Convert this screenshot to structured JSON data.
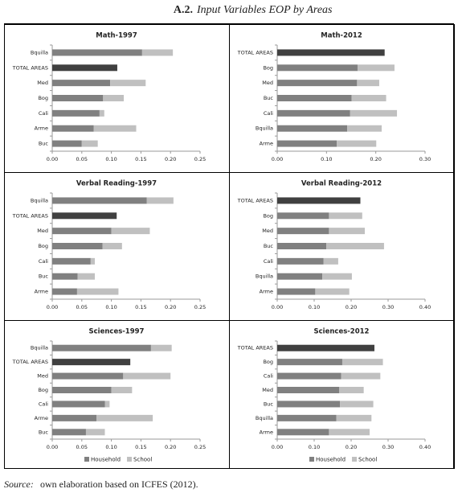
{
  "figure_label": "A.2.",
  "figure_title": "Input Variables EOP by Areas",
  "source_label": "Source:",
  "source_text": "own elaboration based on ICFES (2012).",
  "chart_data": [
    {
      "type": "stacked-barh",
      "title": "Math-1997",
      "categories": [
        "Bquilla",
        "TOTAL AREAS",
        "Med",
        "Bog",
        "Cali",
        "Arme",
        "Buc"
      ],
      "series": [
        {
          "name": "Household",
          "color": "#808080",
          "values": [
            0.152,
            0.11,
            0.098,
            0.086,
            0.08,
            0.07,
            0.05
          ]
        },
        {
          "name": "School",
          "color": "#c0c0c0",
          "values": [
            0.052,
            null,
            0.06,
            0.035,
            0.008,
            0.072,
            0.027
          ]
        }
      ],
      "highlight_category": "TOTAL AREAS",
      "highlight_color": "#404040",
      "xlim": [
        0,
        0.25
      ],
      "xticks": [
        {
          "value": 0,
          "label": "0.00"
        },
        {
          "value": 0.05,
          "label": "0.05"
        },
        {
          "value": 0.1,
          "label": "0.10"
        },
        {
          "value": 0.15,
          "label": "0.15"
        },
        {
          "value": 0.2,
          "label": "0.20"
        },
        {
          "value": 0.25,
          "label": "0.25"
        }
      ],
      "legend": false
    },
    {
      "type": "stacked-barh",
      "title": "Math-2012",
      "categories": [
        "TOTAL AREAS",
        "Bog",
        "Med",
        "Buc",
        "Cali",
        "Bquilla",
        "Arme"
      ],
      "series": [
        {
          "name": "Household",
          "color": "#808080",
          "values": [
            0.218,
            0.163,
            0.162,
            0.151,
            0.148,
            0.142,
            0.121
          ]
        },
        {
          "name": "School",
          "color": "#c0c0c0",
          "values": [
            null,
            0.075,
            0.045,
            0.07,
            0.095,
            0.07,
            0.08
          ]
        }
      ],
      "highlight_category": "TOTAL AREAS",
      "highlight_color": "#404040",
      "xlim": [
        0,
        0.3
      ],
      "xticks": [
        {
          "value": 0,
          "label": "0.00"
        },
        {
          "value": 0.1,
          "label": "0.10"
        },
        {
          "value": 0.2,
          "label": "0.20"
        },
        {
          "value": 0.3,
          "label": "0.30"
        }
      ],
      "legend": false
    },
    {
      "type": "stacked-barh",
      "title": "Verbal Reading-1997",
      "categories": [
        "Bquilla",
        "TOTAL AREAS",
        "Med",
        "Bog",
        "Cali",
        "Buc",
        "Arme"
      ],
      "series": [
        {
          "name": "Household",
          "color": "#808080",
          "values": [
            0.16,
            0.109,
            0.1,
            0.085,
            0.065,
            0.043,
            0.042
          ]
        },
        {
          "name": "School",
          "color": "#c0c0c0",
          "values": [
            0.045,
            null,
            0.065,
            0.033,
            0.007,
            0.029,
            0.07
          ]
        }
      ],
      "highlight_category": "TOTAL AREAS",
      "highlight_color": "#404040",
      "xlim": [
        0,
        0.25
      ],
      "xticks": [
        {
          "value": 0,
          "label": "0.00"
        },
        {
          "value": 0.05,
          "label": "0.05"
        },
        {
          "value": 0.1,
          "label": "0.10"
        },
        {
          "value": 0.15,
          "label": "0.15"
        },
        {
          "value": 0.2,
          "label": "0.20"
        },
        {
          "value": 0.25,
          "label": "0.25"
        }
      ],
      "legend": false
    },
    {
      "type": "stacked-barh",
      "title": "Verbal Reading-2012",
      "categories": [
        "TOTAL AREAS",
        "Bog",
        "Med",
        "Buc",
        "Cali",
        "Bquilla",
        "Arme"
      ],
      "series": [
        {
          "name": "Household",
          "color": "#808080",
          "values": [
            0.225,
            0.14,
            0.14,
            0.133,
            0.125,
            0.122,
            0.103
          ]
        },
        {
          "name": "School",
          "color": "#c0c0c0",
          "values": [
            null,
            0.09,
            0.097,
            0.156,
            0.04,
            0.08,
            0.092
          ]
        }
      ],
      "highlight_category": "TOTAL AREAS",
      "highlight_color": "#404040",
      "xlim": [
        0,
        0.4
      ],
      "xticks": [
        {
          "value": 0,
          "label": "0.00"
        },
        {
          "value": 0.1,
          "label": "0.10"
        },
        {
          "value": 0.2,
          "label": "0.20"
        },
        {
          "value": 0.3,
          "label": "0.30"
        },
        {
          "value": 0.4,
          "label": "0.40"
        }
      ],
      "legend": false
    },
    {
      "type": "stacked-barh",
      "title": "Sciences-1997",
      "categories": [
        "Bquilla",
        "TOTAL AREAS",
        "Med",
        "Bog",
        "Cali",
        "Arme",
        "Buc"
      ],
      "series": [
        {
          "name": "Household",
          "color": "#808080",
          "values": [
            0.167,
            0.132,
            0.12,
            0.1,
            0.089,
            0.075,
            0.057
          ]
        },
        {
          "name": "School",
          "color": "#c0c0c0",
          "values": [
            0.035,
            null,
            0.08,
            0.035,
            0.008,
            0.095,
            0.032
          ]
        }
      ],
      "highlight_category": "TOTAL AREAS",
      "highlight_color": "#404040",
      "xlim": [
        0,
        0.25
      ],
      "xticks": [
        {
          "value": 0,
          "label": "0.00"
        },
        {
          "value": 0.05,
          "label": "0.05"
        },
        {
          "value": 0.1,
          "label": "0.10"
        },
        {
          "value": 0.15,
          "label": "0.15"
        },
        {
          "value": 0.2,
          "label": "0.20"
        },
        {
          "value": 0.25,
          "label": "0.25"
        }
      ],
      "legend": true
    },
    {
      "type": "stacked-barh",
      "title": "Sciences-2012",
      "categories": [
        "TOTAL AREAS",
        "Bog",
        "Cali",
        "Med",
        "Buc",
        "Bquilla",
        "Arme"
      ],
      "series": [
        {
          "name": "Household",
          "color": "#808080",
          "values": [
            0.263,
            0.176,
            0.173,
            0.168,
            0.17,
            0.16,
            0.14
          ]
        },
        {
          "name": "School",
          "color": "#c0c0c0",
          "values": [
            null,
            0.11,
            0.106,
            0.066,
            0.09,
            0.095,
            0.11
          ]
        }
      ],
      "highlight_category": "TOTAL AREAS",
      "highlight_color": "#404040",
      "xlim": [
        0,
        0.4
      ],
      "xticks": [
        {
          "value": 0,
          "label": "0.00"
        },
        {
          "value": 0.1,
          "label": "0.10"
        },
        {
          "value": 0.2,
          "label": "0.20"
        },
        {
          "value": 0.3,
          "label": "0.30"
        },
        {
          "value": 0.4,
          "label": "0.40"
        }
      ],
      "legend": true
    }
  ]
}
